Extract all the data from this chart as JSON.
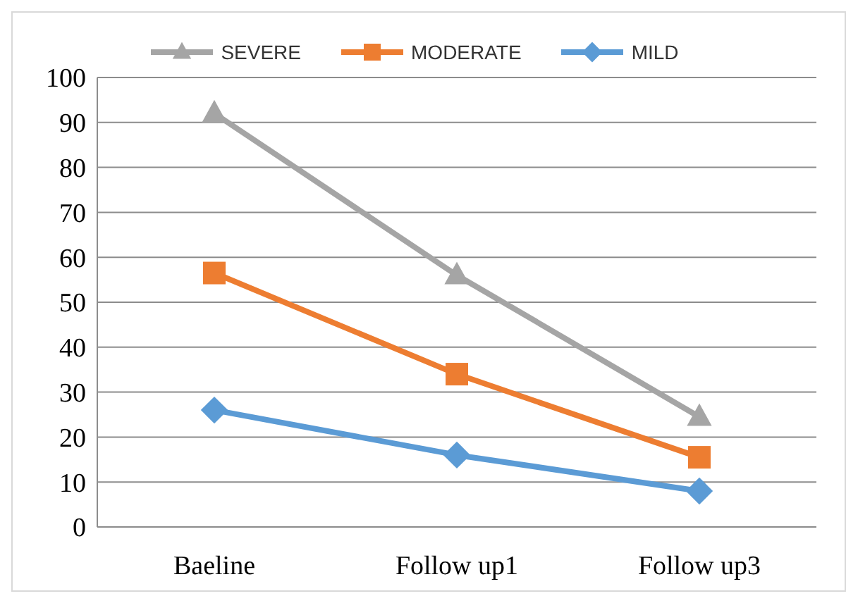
{
  "chart_data": {
    "type": "line",
    "categories": [
      "Baeline",
      "Follow up1",
      "Follow up3"
    ],
    "series": [
      {
        "name": "SEVERE",
        "color": "#a5a5a5",
        "marker": "triangle",
        "values": [
          92,
          56,
          24.5
        ]
      },
      {
        "name": "MODERATE",
        "color": "#ed7d31",
        "marker": "square",
        "values": [
          56.5,
          34,
          15.5
        ]
      },
      {
        "name": "MILD",
        "color": "#5b9bd5",
        "marker": "diamond",
        "values": [
          26,
          16,
          8
        ]
      }
    ],
    "ylim": [
      0,
      100
    ],
    "yticks": [
      0,
      10,
      20,
      30,
      40,
      50,
      60,
      70,
      80,
      90,
      100
    ],
    "grid": "y",
    "legend": "top"
  }
}
